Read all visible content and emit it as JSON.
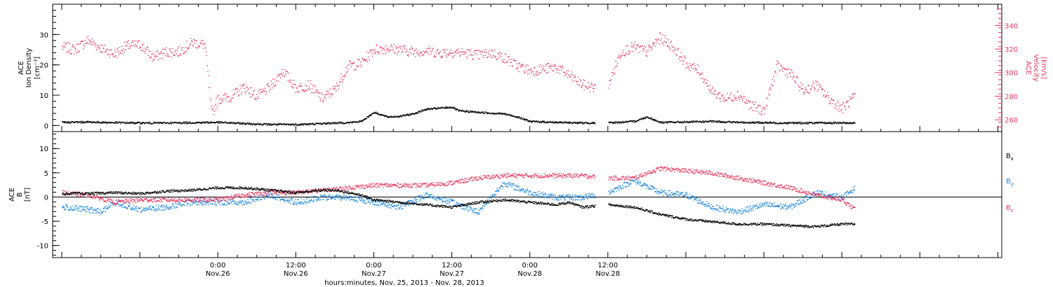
{
  "colors": {
    "black": "#000000",
    "pink": "#e8375f",
    "blue": "#1a86e0"
  },
  "chart_data": [
    {
      "type": "scatter",
      "panel": "top",
      "left_axis_label": [
        "ACE",
        "Ion Density",
        "[cm⁻³]"
      ],
      "right_axis_label": [
        "ACE",
        "Velocity",
        "[km/s]"
      ],
      "ylim_left": [
        -2,
        40
      ],
      "yticks_left": [
        0,
        10,
        20,
        30
      ],
      "ylim_right": [
        250,
        358
      ],
      "yticks_right": [
        260,
        280,
        300,
        320,
        340
      ],
      "series": [
        {
          "key": "density",
          "axis": "left",
          "color": "#000000",
          "x": [
            0,
            4,
            8,
            12,
            16,
            20,
            24,
            28,
            32,
            36,
            38,
            40,
            42,
            44,
            46,
            48,
            50,
            52,
            54,
            56,
            60,
            61,
            64,
            68,
            70,
            72,
            76,
            80,
            82,
            84,
            88,
            90,
            92,
            96,
            100,
            104,
            108,
            110,
            112,
            116,
            120,
            122
          ],
          "y": [
            1.2,
            1.3,
            1.1,
            1.0,
            1.0,
            1.1,
            1.2,
            0.8,
            0.5,
            0.5,
            0.6,
            0.8,
            1.0,
            1.1,
            1.5,
            4.5,
            3.0,
            3.2,
            4.0,
            5.5,
            6.2,
            5.0,
            4.5,
            4.0,
            3.0,
            1.5,
            1.2,
            1.0,
            1.0,
            1.0,
            1.5,
            3.0,
            1.2,
            1.3,
            1.5,
            1.2,
            1.1,
            1.0,
            1.0,
            1.0,
            1.0,
            1.0
          ]
        },
        {
          "key": "velocity",
          "axis": "right",
          "color": "#e8375f",
          "x": [
            0,
            2,
            4,
            6,
            8,
            10,
            12,
            14,
            16,
            18,
            20,
            22,
            23,
            24,
            26,
            28,
            30,
            32,
            34,
            36,
            38,
            40,
            42,
            44,
            46,
            48,
            50,
            52,
            54,
            56,
            58,
            60,
            62,
            64,
            66,
            68,
            70,
            72,
            76,
            78,
            80,
            82,
            84,
            86,
            88,
            90,
            92,
            94,
            96,
            98,
            100,
            102,
            104,
            106,
            108,
            110,
            112,
            114,
            116,
            118,
            120,
            122
          ],
          "y": [
            322,
            320,
            328,
            321,
            316,
            323,
            324,
            313,
            318,
            318,
            326,
            324,
            265,
            278,
            280,
            288,
            280,
            288,
            302,
            287,
            290,
            278,
            286,
            306,
            308,
            320,
            321,
            320,
            318,
            319,
            317,
            318,
            317,
            315,
            317,
            313,
            306,
            302,
            305,
            298,
            290,
            287,
            290,
            318,
            322,
            318,
            330,
            322,
            308,
            302,
            284,
            278,
            282,
            272,
            268,
            306,
            300,
            285,
            290,
            278,
            270,
            280
          ]
        }
      ]
    },
    {
      "type": "scatter",
      "panel": "bottom",
      "left_axis_label": [
        "ACE",
        "B",
        "[nT]"
      ],
      "ylim": [
        -12.5,
        13.5
      ],
      "yticks": [
        -10,
        -5,
        0,
        5,
        10
      ],
      "zero_line": true,
      "legend": [
        "Bx",
        "By",
        "Bz"
      ],
      "series": [
        {
          "key": "Bx",
          "color": "#000000",
          "x": [
            0,
            4,
            8,
            12,
            16,
            20,
            24,
            28,
            32,
            36,
            40,
            42,
            44,
            46,
            48,
            52,
            56,
            60,
            64,
            68,
            72,
            76,
            78,
            80,
            84,
            88,
            92,
            96,
            100,
            104,
            108,
            112,
            116,
            120,
            122
          ],
          "y": [
            0.8,
            0.8,
            1.0,
            0.8,
            1.3,
            1.5,
            2.0,
            2.0,
            1.5,
            1.0,
            1.5,
            1.5,
            1.0,
            0.5,
            -0.5,
            -1.0,
            -1.5,
            -2.0,
            -1.0,
            -0.5,
            -1.0,
            -1.5,
            -1.0,
            -2.0,
            -1.5,
            -2.0,
            -3.5,
            -4.5,
            -5.0,
            -5.5,
            -5.5,
            -5.8,
            -6.0,
            -5.5,
            -5.5
          ]
        },
        {
          "key": "By",
          "color": "#1a86e0",
          "x": [
            0,
            4,
            6,
            8,
            12,
            16,
            20,
            24,
            28,
            32,
            36,
            40,
            44,
            48,
            52,
            56,
            60,
            64,
            68,
            72,
            76,
            80,
            84,
            88,
            92,
            96,
            100,
            104,
            108,
            112,
            116,
            120,
            122
          ],
          "y": [
            -2.0,
            -2.5,
            -3.0,
            -1.0,
            -2.5,
            -2.0,
            -1.0,
            -1.0,
            -1.0,
            0.5,
            -1.0,
            0.0,
            0.0,
            -1.0,
            -2.0,
            0.5,
            -1.0,
            -3.0,
            3.0,
            1.0,
            0.0,
            0.0,
            1.0,
            3.5,
            1.0,
            0.5,
            -2.0,
            -3.0,
            -1.5,
            -2.0,
            1.0,
            0.0,
            2.0
          ]
        },
        {
          "key": "Bz",
          "color": "#e8375f",
          "x": [
            0,
            4,
            8,
            12,
            16,
            20,
            24,
            28,
            32,
            36,
            40,
            44,
            48,
            52,
            56,
            60,
            64,
            68,
            72,
            76,
            80,
            84,
            88,
            92,
            96,
            100,
            104,
            108,
            112,
            116,
            120,
            122
          ],
          "y": [
            1.0,
            0.5,
            -1.0,
            -0.5,
            -0.5,
            -0.5,
            -0.5,
            0.5,
            1.0,
            1.0,
            1.5,
            2.0,
            2.5,
            2.5,
            2.5,
            3.0,
            4.0,
            4.5,
            4.5,
            4.5,
            4.5,
            4.0,
            4.0,
            6.0,
            5.5,
            5.0,
            4.0,
            3.0,
            2.0,
            0.5,
            -0.5,
            -2.5
          ]
        }
      ]
    }
  ],
  "x_axis": {
    "ticks": [
      {
        "x": 24,
        "time": "0:00",
        "date": "Nov.26"
      },
      {
        "x": 36,
        "time": "12:00",
        "date": "Nov.26"
      },
      {
        "x": 48,
        "time": "0:00",
        "date": "Nov.27"
      },
      {
        "x": 60,
        "time": "12:00",
        "date": "Nov.27"
      },
      {
        "x": 72,
        "time": "0:00",
        "date": "Nov.28"
      },
      {
        "x": 84,
        "time": "12:00",
        "date": "Nov.28"
      }
    ],
    "title": "hours:minutes, Nov. 25, 2013 - Nov. 28, 2013"
  },
  "labels": {
    "ion_density": [
      "ACE",
      "Ion Density",
      "[cm⁻³]"
    ],
    "velocity": [
      "ACE",
      "Velocity",
      "[km/s]"
    ],
    "b_field": [
      "ACE",
      "B",
      "[nT]"
    ],
    "bx": "B",
    "bx_sub": "x",
    "by": "B",
    "by_sub": "y",
    "bz": "B",
    "bz_sub": "z"
  }
}
